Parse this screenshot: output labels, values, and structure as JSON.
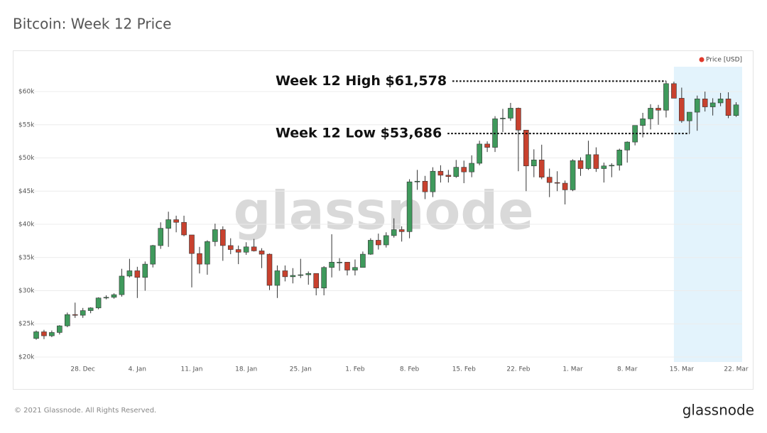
{
  "chart_data": {
    "type": "candlestick",
    "title": "Bitcoin: Week 12 Price",
    "categories": [
      null,
      null,
      null,
      null,
      null,
      null,
      "28. Dec",
      null,
      null,
      null,
      null,
      null,
      null,
      "4. Jan",
      null,
      null,
      null,
      null,
      null,
      null,
      "11. Jan",
      null,
      null,
      null,
      null,
      null,
      null,
      "18. Jan",
      null,
      null,
      null,
      null,
      null,
      null,
      "25. Jan",
      null,
      null,
      null,
      null,
      null,
      null,
      "1. Feb",
      null,
      null,
      null,
      null,
      null,
      null,
      "8. Feb",
      null,
      null,
      null,
      null,
      null,
      null,
      "15. Feb",
      null,
      null,
      null,
      null,
      null,
      null,
      "22. Feb",
      null,
      null,
      null,
      null,
      null,
      null,
      "1. Mar",
      null,
      null,
      null,
      null,
      null,
      null,
      "8. Mar",
      null,
      null,
      null,
      null,
      null,
      null,
      "15. Mar",
      null,
      null,
      null,
      null,
      null,
      null,
      "22. Mar"
    ],
    "open": [
      22800,
      23800,
      23200,
      23700,
      24700,
      26400,
      26300,
      27000,
      27400,
      28900,
      29000,
      29400,
      32200,
      33000,
      32000,
      34000,
      36800,
      39400,
      40700,
      40300,
      38400,
      35600,
      34000,
      37400,
      39200,
      36800,
      36200,
      35800,
      36600,
      36000,
      35500,
      30800,
      33000,
      32100,
      32300,
      32400,
      32600,
      30400,
      33500,
      34300,
      34300,
      33100,
      33500,
      35500,
      37600,
      36900,
      38300,
      39200,
      38900,
      46400,
      46500,
      44900,
      48000,
      47400,
      47200,
      48600,
      47900,
      49200,
      52100,
      51600,
      55900,
      56000,
      57500,
      54200,
      48800,
      49700,
      47100,
      46300,
      46200,
      45200,
      49600,
      48400,
      50500,
      48400,
      48800,
      48900,
      51200,
      52400,
      54900,
      55900,
      57500,
      57200,
      61200,
      59000,
      55600,
      56900,
      58900,
      57700,
      58300,
      58900,
      56400
    ],
    "high": [
      24000,
      24100,
      24000,
      24800,
      26700,
      28200,
      27400,
      27500,
      29000,
      29300,
      29600,
      33300,
      34800,
      33600,
      34400,
      36900,
      40300,
      41900,
      41300,
      41300,
      38400,
      36600,
      37600,
      40100,
      39700,
      37900,
      36800,
      37300,
      37800,
      36400,
      35600,
      33800,
      33800,
      33400,
      34800,
      32900,
      32600,
      33700,
      38500,
      34900,
      34300,
      34700,
      35900,
      37900,
      38600,
      38800,
      40900,
      39700,
      46800,
      48200,
      47300,
      48600,
      48900,
      48200,
      49700,
      49600,
      50400,
      52600,
      52500,
      56300,
      57400,
      58300,
      57600,
      54200,
      51300,
      52000,
      48400,
      48000,
      46600,
      49800,
      50100,
      52600,
      51600,
      49300,
      49200,
      51400,
      52500,
      54900,
      56800,
      58100,
      58000,
      61578,
      61500,
      60600,
      56900,
      59400,
      60000,
      59000,
      59800,
      59900,
      58400
    ],
    "low": [
      22600,
      22700,
      23000,
      23400,
      24500,
      25900,
      25900,
      26600,
      27200,
      28700,
      28800,
      29100,
      32000,
      28900,
      30000,
      33500,
      36300,
      36600,
      38800,
      38200,
      30500,
      32600,
      32400,
      36700,
      34500,
      35500,
      34000,
      35400,
      35900,
      33400,
      30100,
      28900,
      31400,
      31100,
      31900,
      30900,
      29300,
      29300,
      32000,
      33000,
      32300,
      32300,
      33500,
      35400,
      36200,
      36500,
      38000,
      37400,
      37900,
      45200,
      43800,
      44100,
      46300,
      46300,
      47000,
      46200,
      47100,
      48900,
      50900,
      50900,
      53900,
      55600,
      48000,
      45000,
      47100,
      46800,
      44100,
      45000,
      43000,
      45000,
      47300,
      48200,
      47900,
      46300,
      47100,
      48100,
      49300,
      51900,
      53100,
      54300,
      55000,
      56100,
      59000,
      55300,
      53686,
      54100,
      57000,
      56400,
      57800,
      56000,
      56200
    ],
    "close": [
      23800,
      23200,
      23700,
      24700,
      26400,
      26300,
      27000,
      27400,
      28900,
      29000,
      29400,
      32200,
      33000,
      32000,
      34000,
      36800,
      39400,
      40700,
      40300,
      38400,
      35600,
      34000,
      37400,
      39200,
      36800,
      36200,
      35800,
      36600,
      36000,
      35500,
      30800,
      33000,
      32100,
      32300,
      32400,
      32600,
      30400,
      33500,
      34300,
      34300,
      33100,
      33500,
      35500,
      37600,
      36900,
      38300,
      39200,
      38900,
      46400,
      46500,
      44900,
      48000,
      47400,
      47200,
      48600,
      47900,
      49200,
      52100,
      51600,
      55900,
      56000,
      57500,
      54200,
      48800,
      49700,
      47100,
      46300,
      46200,
      45200,
      49600,
      48400,
      50500,
      48400,
      48800,
      48900,
      51200,
      52400,
      54900,
      55900,
      57500,
      57200,
      61200,
      59000,
      55600,
      56900,
      58900,
      57700,
      58300,
      58900,
      56400,
      58000
    ],
    "up_color": "#3f9a5c",
    "down_color": "#c8412e",
    "ylim": [
      19250,
      63750
    ],
    "yticks": [
      {
        "value": 20000,
        "label": "$20k"
      },
      {
        "value": 25000,
        "label": "$25k"
      },
      {
        "value": 30000,
        "label": "$30k"
      },
      {
        "value": 35000,
        "label": "$35k"
      },
      {
        "value": 40000,
        "label": "$40k"
      },
      {
        "value": 45000,
        "label": "$45k"
      },
      {
        "value": 50000,
        "label": "$50k"
      },
      {
        "value": 55000,
        "label": "$55k"
      },
      {
        "value": 60000,
        "label": "$60k"
      }
    ],
    "grid": true,
    "legend": {
      "label": "Price [USD]",
      "color": "#e0392b",
      "position": "top-right"
    },
    "highlight": {
      "start": "15. Mar",
      "color": "#e3f3fc"
    },
    "annotations": [
      {
        "text": "Week 12 High $61,578",
        "value": 61578
      },
      {
        "text": "Week 12 Low $53,686",
        "value": 53686
      }
    ]
  },
  "footer": "© 2021 Glassnode. All Rights Reserved.",
  "logo": "glassnode",
  "watermark": "glassnode"
}
